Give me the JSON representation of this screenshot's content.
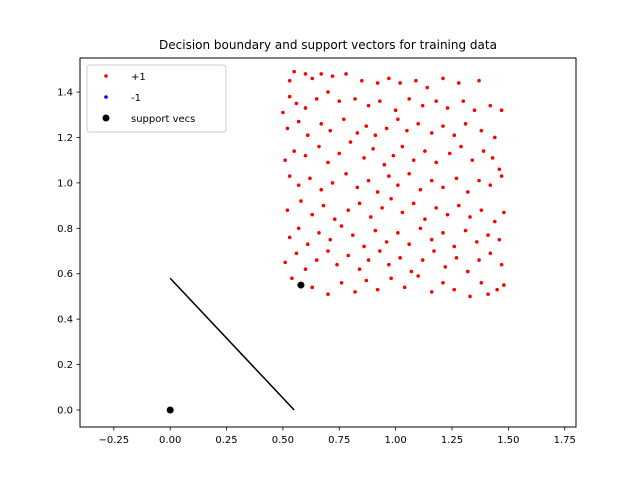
{
  "chart_data": {
    "type": "scatter",
    "title": "Decision boundary and support vectors for training data",
    "xlabel": "",
    "ylabel": "",
    "xlim": [
      -0.4,
      1.8
    ],
    "ylim": [
      -0.075,
      1.55
    ],
    "grid": false,
    "legend_position": "top-left",
    "x_ticks": [
      -0.25,
      0.0,
      0.25,
      0.5,
      0.75,
      1.0,
      1.25,
      1.5,
      1.75
    ],
    "x_tick_labels": [
      "−0.25",
      "0.00",
      "0.25",
      "0.50",
      "0.75",
      "1.00",
      "1.25",
      "1.50",
      "1.75"
    ],
    "y_ticks": [
      0.0,
      0.2,
      0.4,
      0.6,
      0.8,
      1.0,
      1.2,
      1.4
    ],
    "y_tick_labels": [
      "0.0",
      "0.2",
      "0.4",
      "0.6",
      "0.8",
      "1.0",
      "1.2",
      "1.4"
    ],
    "series": [
      {
        "name": "+1",
        "marker": "dot",
        "color": "#ff0000",
        "points": [
          [
            0.53,
            1.45
          ],
          [
            0.55,
            1.49
          ],
          [
            0.6,
            1.48
          ],
          [
            0.63,
            1.46
          ],
          [
            0.67,
            1.48
          ],
          [
            0.72,
            1.47
          ],
          [
            0.78,
            1.48
          ],
          [
            0.85,
            1.45
          ],
          [
            0.92,
            1.44
          ],
          [
            0.97,
            1.46
          ],
          [
            1.02,
            1.44
          ],
          [
            1.09,
            1.45
          ],
          [
            1.14,
            1.42
          ],
          [
            1.21,
            1.46
          ],
          [
            1.28,
            1.44
          ],
          [
            1.37,
            1.45
          ],
          [
            0.5,
            1.31
          ],
          [
            0.53,
            1.38
          ],
          [
            0.56,
            1.35
          ],
          [
            0.6,
            1.33
          ],
          [
            0.65,
            1.37
          ],
          [
            0.7,
            1.4
          ],
          [
            0.75,
            1.36
          ],
          [
            0.82,
            1.37
          ],
          [
            0.88,
            1.34
          ],
          [
            0.93,
            1.36
          ],
          [
            1.0,
            1.32
          ],
          [
            1.06,
            1.37
          ],
          [
            1.12,
            1.34
          ],
          [
            1.18,
            1.36
          ],
          [
            1.23,
            1.33
          ],
          [
            1.3,
            1.36
          ],
          [
            1.35,
            1.32
          ],
          [
            1.42,
            1.34
          ],
          [
            1.47,
            1.32
          ],
          [
            0.52,
            1.24
          ],
          [
            0.57,
            1.27
          ],
          [
            0.61,
            1.21
          ],
          [
            0.67,
            1.26
          ],
          [
            0.71,
            1.23
          ],
          [
            0.77,
            1.28
          ],
          [
            0.83,
            1.22
          ],
          [
            0.87,
            1.25
          ],
          [
            0.91,
            1.21
          ],
          [
            0.96,
            1.24
          ],
          [
            1.01,
            1.28
          ],
          [
            1.05,
            1.23
          ],
          [
            1.1,
            1.26
          ],
          [
            1.16,
            1.22
          ],
          [
            1.21,
            1.25
          ],
          [
            1.26,
            1.21
          ],
          [
            1.31,
            1.26
          ],
          [
            1.38,
            1.23
          ],
          [
            1.44,
            1.2
          ],
          [
            0.51,
            1.1
          ],
          [
            0.55,
            1.14
          ],
          [
            0.6,
            1.12
          ],
          [
            0.66,
            1.16
          ],
          [
            0.7,
            1.09
          ],
          [
            0.75,
            1.13
          ],
          [
            0.8,
            1.18
          ],
          [
            0.86,
            1.11
          ],
          [
            0.9,
            1.15
          ],
          [
            0.95,
            1.08
          ],
          [
            0.99,
            1.12
          ],
          [
            1.03,
            1.16
          ],
          [
            1.08,
            1.1
          ],
          [
            1.13,
            1.14
          ],
          [
            1.18,
            1.09
          ],
          [
            1.24,
            1.13
          ],
          [
            1.29,
            1.16
          ],
          [
            1.34,
            1.1
          ],
          [
            1.39,
            1.14
          ],
          [
            1.43,
            1.11
          ],
          [
            1.46,
            1.06
          ],
          [
            0.53,
            1.03
          ],
          [
            0.57,
            0.99
          ],
          [
            0.62,
            1.02
          ],
          [
            0.67,
            0.97
          ],
          [
            0.72,
            1.0
          ],
          [
            0.78,
            1.04
          ],
          [
            0.83,
            0.98
          ],
          [
            0.88,
            1.01
          ],
          [
            0.92,
            0.96
          ],
          [
            0.97,
            1.03
          ],
          [
            1.01,
            0.99
          ],
          [
            1.06,
            1.04
          ],
          [
            1.11,
            0.97
          ],
          [
            1.16,
            1.01
          ],
          [
            1.21,
            0.98
          ],
          [
            1.27,
            1.02
          ],
          [
            1.32,
            0.96
          ],
          [
            1.37,
            1.01
          ],
          [
            1.42,
            0.99
          ],
          [
            1.47,
            1.03
          ],
          [
            0.52,
            0.88
          ],
          [
            0.58,
            0.92
          ],
          [
            0.63,
            0.86
          ],
          [
            0.68,
            0.9
          ],
          [
            0.73,
            0.84
          ],
          [
            0.79,
            0.88
          ],
          [
            0.84,
            0.91
          ],
          [
            0.89,
            0.85
          ],
          [
            0.94,
            0.89
          ],
          [
            0.98,
            0.93
          ],
          [
            1.03,
            0.87
          ],
          [
            1.08,
            0.91
          ],
          [
            1.13,
            0.84
          ],
          [
            1.18,
            0.89
          ],
          [
            1.23,
            0.86
          ],
          [
            1.28,
            0.9
          ],
          [
            1.33,
            0.85
          ],
          [
            1.38,
            0.88
          ],
          [
            1.44,
            0.83
          ],
          [
            1.48,
            0.87
          ],
          [
            0.53,
            0.76
          ],
          [
            0.57,
            0.8
          ],
          [
            0.61,
            0.73
          ],
          [
            0.66,
            0.78
          ],
          [
            0.71,
            0.75
          ],
          [
            0.76,
            0.81
          ],
          [
            0.81,
            0.77
          ],
          [
            0.86,
            0.72
          ],
          [
            0.91,
            0.79
          ],
          [
            0.96,
            0.74
          ],
          [
            1.01,
            0.78
          ],
          [
            1.06,
            0.73
          ],
          [
            1.11,
            0.8
          ],
          [
            1.16,
            0.75
          ],
          [
            1.21,
            0.78
          ],
          [
            1.26,
            0.72
          ],
          [
            1.31,
            0.79
          ],
          [
            1.36,
            0.74
          ],
          [
            1.41,
            0.77
          ],
          [
            1.46,
            0.75
          ],
          [
            0.51,
            0.65
          ],
          [
            0.56,
            0.69
          ],
          [
            0.6,
            0.62
          ],
          [
            0.65,
            0.66
          ],
          [
            0.7,
            0.7
          ],
          [
            0.74,
            0.64
          ],
          [
            0.79,
            0.68
          ],
          [
            0.84,
            0.62
          ],
          [
            0.88,
            0.66
          ],
          [
            0.93,
            0.7
          ],
          [
            0.97,
            0.64
          ],
          [
            1.02,
            0.67
          ],
          [
            1.07,
            0.61
          ],
          [
            1.12,
            0.66
          ],
          [
            1.17,
            0.7
          ],
          [
            1.22,
            0.63
          ],
          [
            1.27,
            0.67
          ],
          [
            1.32,
            0.61
          ],
          [
            1.37,
            0.66
          ],
          [
            1.42,
            0.69
          ],
          [
            1.47,
            0.64
          ],
          [
            0.54,
            0.58
          ],
          [
            0.63,
            0.54
          ],
          [
            0.7,
            0.51
          ],
          [
            0.76,
            0.56
          ],
          [
            0.82,
            0.52
          ],
          [
            0.87,
            0.57
          ],
          [
            0.92,
            0.53
          ],
          [
            0.98,
            0.58
          ],
          [
            1.04,
            0.54
          ],
          [
            1.1,
            0.59
          ],
          [
            1.16,
            0.52
          ],
          [
            1.21,
            0.56
          ],
          [
            1.26,
            0.53
          ],
          [
            1.33,
            0.5
          ],
          [
            1.38,
            0.56
          ],
          [
            1.41,
            0.51
          ],
          [
            1.45,
            0.53
          ],
          [
            1.48,
            0.55
          ]
        ]
      },
      {
        "name": "-1",
        "marker": "dot",
        "color": "#0000ff",
        "points": [
          [
            0.0,
            0.0
          ]
        ]
      },
      {
        "name": "support vecs",
        "marker": "circle",
        "color": "#000000",
        "points": [
          [
            0.0,
            0.0
          ],
          [
            0.58,
            0.55
          ]
        ]
      }
    ],
    "decision_boundary": {
      "color": "#000000",
      "points": [
        [
          0.0,
          0.58
        ],
        [
          0.55,
          0.0
        ]
      ]
    }
  }
}
